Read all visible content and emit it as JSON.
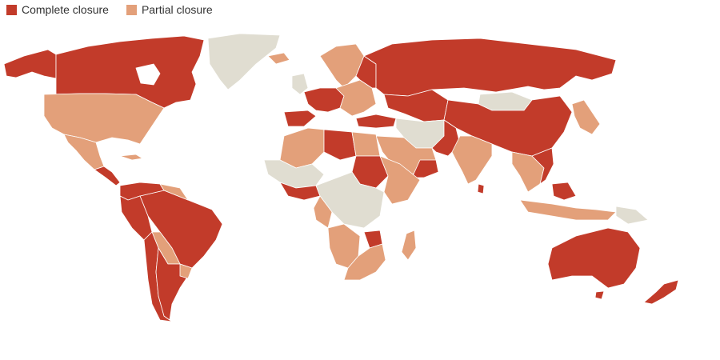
{
  "legend": {
    "items": [
      {
        "label": "Complete closure",
        "color": "#c23b2a"
      },
      {
        "label": "Partial closure",
        "color": "#e3a07a"
      }
    ]
  },
  "colors": {
    "complete": "#c23b2a",
    "partial": "#e3a07a",
    "none": "#e0ddd1",
    "background": "#ffffff"
  }
}
